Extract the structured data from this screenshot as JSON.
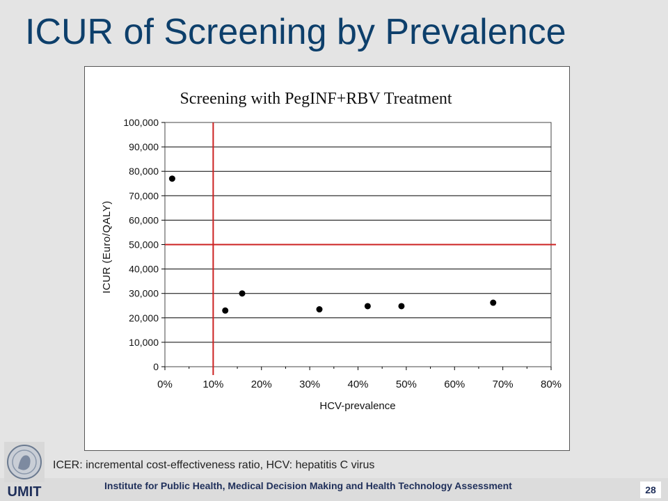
{
  "slide": {
    "title": "ICUR of Screening by Prevalence",
    "footnote": "ICER: incremental cost-effectiveness ratio, HCV: hepatitis C virus",
    "footer_text": "Institute for Public Health, Medical Decision Making and Health Technology Assessment",
    "page_number": "28",
    "logo_text": "UMIT"
  },
  "colors": {
    "title": "#0d3f6b",
    "threshold_lines": "#cc2222",
    "points": "#000000"
  },
  "chart_data": {
    "type": "scatter",
    "title": "Screening with PegINF+RBV Treatment",
    "xlabel": "HCV-prevalence",
    "ylabel": "ICUR (Euro/QALY)",
    "xlim": [
      0,
      0.8
    ],
    "ylim": [
      0,
      100000
    ],
    "x_ticks": [
      0,
      0.1,
      0.2,
      0.3,
      0.4,
      0.5,
      0.6,
      0.7,
      0.8
    ],
    "x_tick_labels": [
      "0%",
      "10%",
      "20%",
      "30%",
      "40%",
      "50%",
      "60%",
      "70%",
      "80%"
    ],
    "y_ticks": [
      0,
      10000,
      20000,
      30000,
      40000,
      50000,
      60000,
      70000,
      80000,
      90000,
      100000
    ],
    "y_tick_labels": [
      "0",
      "10,000",
      "20,000",
      "30,000",
      "40,000",
      "50,000",
      "60,000",
      "70,000",
      "80,000",
      "90,000",
      "100,000"
    ],
    "grid": "horizontal",
    "series": [
      {
        "points": [
          {
            "x": 0.015,
            "y": 77000
          },
          {
            "x": 0.125,
            "y": 23000
          },
          {
            "x": 0.16,
            "y": 30000
          },
          {
            "x": 0.32,
            "y": 23500
          },
          {
            "x": 0.42,
            "y": 24800
          },
          {
            "x": 0.49,
            "y": 24800
          },
          {
            "x": 0.68,
            "y": 26200
          }
        ]
      }
    ],
    "reference_lines": {
      "vertical_x": 0.1,
      "horizontal_y": 50000
    }
  }
}
